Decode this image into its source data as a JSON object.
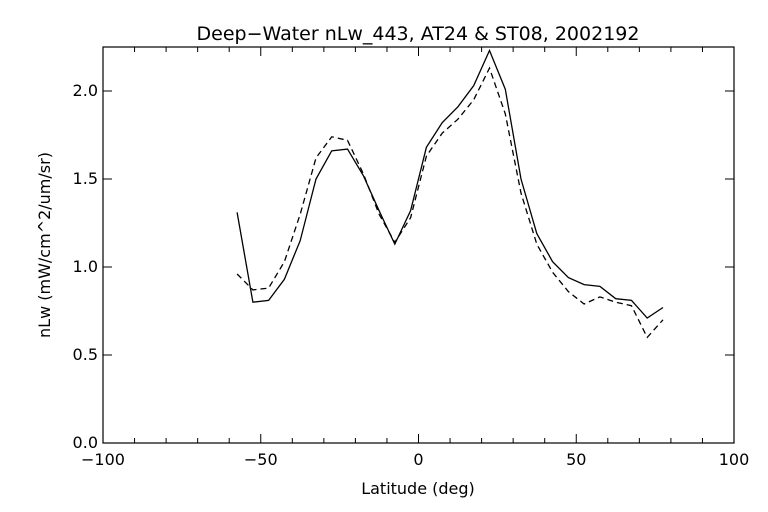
{
  "chart_data": {
    "type": "line",
    "title": "Deep−Water nLw_443, AT24 & ST08, 2002192",
    "xlabel": "Latitude (deg)",
    "ylabel": "nLw (mW/cm^2/um/sr)",
    "xlim": [
      -100,
      100
    ],
    "ylim": [
      0.0,
      2.25
    ],
    "x_ticks": [
      -100,
      -50,
      0,
      50,
      100
    ],
    "x_tick_labels": [
      "−100",
      "−50",
      "0",
      "50",
      "100"
    ],
    "y_ticks": [
      0.0,
      0.5,
      1.0,
      1.5,
      2.0
    ],
    "y_tick_labels": [
      "0.0",
      "0.5",
      "1.0",
      "1.5",
      "2.0"
    ],
    "grid": false,
    "series": [
      {
        "style": "solid",
        "x": [
          -57.5,
          -52.5,
          -47.5,
          -42.5,
          -37.5,
          -32.5,
          -27.5,
          -22.5,
          -17.5,
          -12.5,
          -7.5,
          -2.5,
          2.5,
          7.5,
          12.5,
          17.5,
          22.5,
          27.5,
          32.5,
          37.5,
          42.5,
          47.5,
          52.5,
          57.5,
          62.5,
          67.5,
          72.5,
          77.5
        ],
        "values": [
          1.31,
          0.8,
          0.81,
          0.93,
          1.15,
          1.5,
          1.66,
          1.67,
          1.52,
          1.32,
          1.13,
          1.32,
          1.68,
          1.82,
          1.91,
          2.03,
          2.23,
          2.01,
          1.5,
          1.19,
          1.03,
          0.94,
          0.9,
          0.89,
          0.82,
          0.81,
          0.71,
          0.77
        ]
      },
      {
        "style": "dashed",
        "x": [
          -57.5,
          -52.5,
          -47.5,
          -42.5,
          -37.5,
          -32.5,
          -27.5,
          -22.5,
          -17.5,
          -12.5,
          -7.5,
          -2.5,
          2.5,
          7.5,
          12.5,
          17.5,
          22.5,
          27.5,
          32.5,
          37.5,
          42.5,
          47.5,
          52.5,
          57.5,
          62.5,
          67.5,
          72.5,
          77.5
        ],
        "values": [
          0.96,
          0.87,
          0.88,
          1.03,
          1.3,
          1.62,
          1.74,
          1.72,
          1.53,
          1.3,
          1.14,
          1.28,
          1.63,
          1.76,
          1.84,
          1.95,
          2.13,
          1.87,
          1.42,
          1.13,
          0.97,
          0.86,
          0.79,
          0.83,
          0.8,
          0.78,
          0.6,
          0.7
        ]
      }
    ]
  }
}
